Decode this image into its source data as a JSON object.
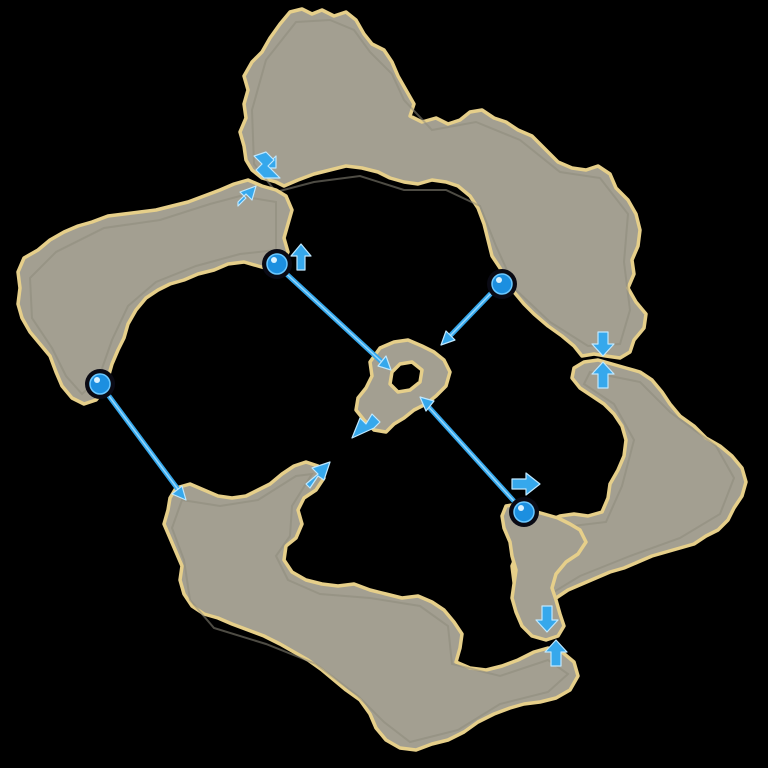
{
  "map": {
    "colors": {
      "background": "#000000",
      "land": "#a39f91",
      "coast": "#e6cf8a",
      "route": "#36a8ec",
      "node": "#1c8fe0"
    },
    "regions": [
      "north-island",
      "west-island",
      "east-island",
      "southwest-island",
      "southeast-island",
      "central-islet"
    ],
    "waypoints": [
      "west-waypoint",
      "north-waypoint",
      "northeast-waypoint",
      "southeast-waypoint"
    ],
    "routes": [
      "west-route",
      "north-route",
      "northeast-route",
      "southeast-route"
    ],
    "transition_markers": [
      "north-west-gate",
      "north-east-gate",
      "southeast-gate",
      "north-waypoint-exit",
      "central-exit",
      "southwest-exit",
      "southeast-waypoint-exit"
    ]
  }
}
